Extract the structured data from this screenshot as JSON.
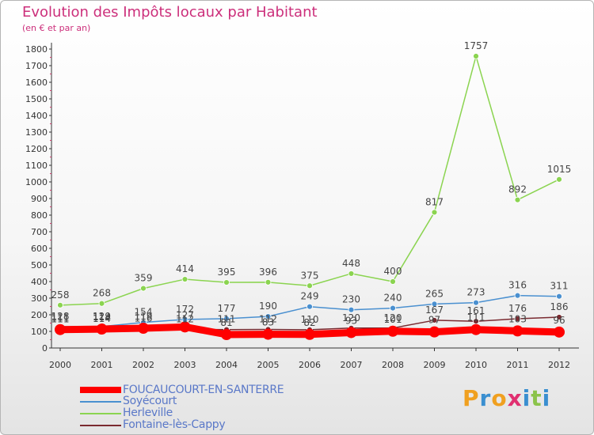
{
  "header": {
    "title": "Evolution des Impôts locaux par Habitant",
    "subtitle": "(en € et par an)"
  },
  "brand": {
    "letters": [
      "P",
      "r",
      "o",
      "x",
      "i",
      "t",
      "i"
    ],
    "colors": [
      "#f0a020",
      "#3a8fd0",
      "#f0a020",
      "#e03070",
      "#3a8fd0",
      "#8bc34a",
      "#3a8fd0"
    ]
  },
  "chart_data": {
    "type": "line",
    "title": "Evolution des Impôts locaux par Habitant",
    "subtitle": "(en € et par an)",
    "x": [
      "2000",
      "2001",
      "2002",
      "2003",
      "2004",
      "2005",
      "2006",
      "2007",
      "2008",
      "2009",
      "2010",
      "2011",
      "2012"
    ],
    "ylim": [
      0,
      1800
    ],
    "yticks": [
      0,
      100,
      200,
      300,
      400,
      500,
      600,
      700,
      800,
      900,
      1000,
      1100,
      1200,
      1300,
      1400,
      1500,
      1600,
      1700,
      1800
    ],
    "grid": false,
    "legend_position": "bottom-left",
    "series": [
      {
        "name": "FOUCAUCOURT-EN-SANTERRE",
        "color": "#ff0000",
        "values": [
          111,
          114,
          119,
          127,
          81,
          83,
          82,
          93,
          101,
          97,
          111,
          103,
          96
        ],
        "labels_shown": false
      },
      {
        "name": "Soyécourt",
        "color": "#4a90d0",
        "values": [
          128,
          129,
          154,
          172,
          177,
          190,
          249,
          230,
          240,
          265,
          273,
          316,
          311
        ],
        "labels_shown": true
      },
      {
        "name": "Herleville",
        "color": "#8bd450",
        "values": [
          258,
          268,
          359,
          414,
          395,
          396,
          375,
          448,
          400,
          817,
          1757,
          892,
          1015
        ],
        "labels_shown": true
      },
      {
        "name": "Fontaine-lès-Cappy",
        "color": "#7a2a30",
        "values": [
          111,
          114,
          116,
          112,
          111,
          112,
          110,
          120,
          120,
          167,
          161,
          176,
          186
        ],
        "labels_shown": true
      }
    ]
  }
}
